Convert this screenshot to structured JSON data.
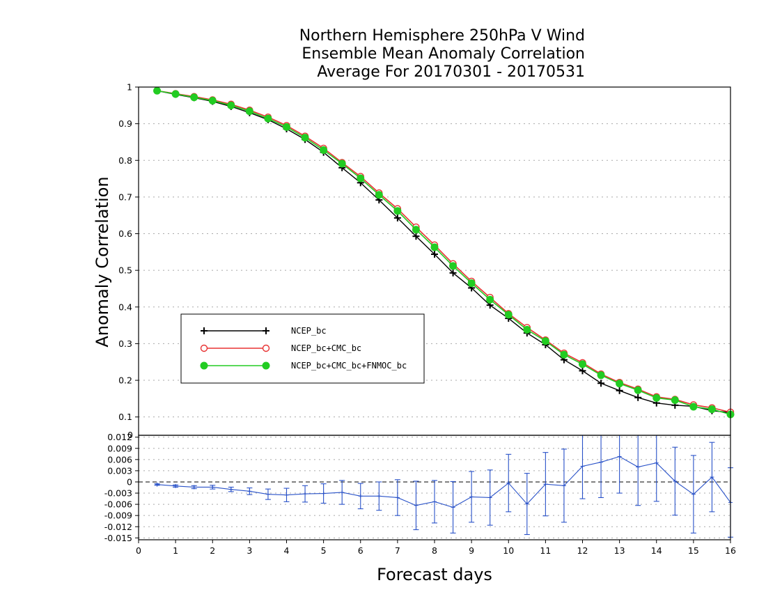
{
  "title_lines": [
    "Northern Hemisphere 250hPa V Wind",
    "Ensemble Mean Anomaly Correlation",
    "Average For 20170301 - 20170531"
  ],
  "colors": {
    "NCEP_bc": "#000000",
    "NCEP_bc+CMC_bc": "#e83232",
    "NCEP_bc+CMC_bc+FNMOC_bc": "#22cc22",
    "difference": "#2851c8",
    "grid": "#a8a8a8"
  },
  "chart_data": [
    {
      "type": "line",
      "title": "Northern Hemisphere 250hPa V Wind Ensemble Mean Anomaly Correlation Average For 20170301 - 20170531",
      "xlabel": "Forecast days",
      "ylabel": "Anomaly Correlation",
      "xlim": [
        0,
        16
      ],
      "ylim": [
        0.05,
        1.0
      ],
      "yticks": [
        0.1,
        0.2,
        0.3,
        0.4,
        0.5,
        0.6,
        0.7,
        0.8,
        0.9,
        1
      ],
      "grid": true,
      "legend_position": "lower-left",
      "x": [
        0.5,
        1,
        1.5,
        2,
        2.5,
        3,
        3.5,
        4,
        4.5,
        5,
        5.5,
        6,
        6.5,
        7,
        7.5,
        8,
        8.5,
        9,
        9.5,
        10,
        10.5,
        11,
        11.5,
        12,
        12.5,
        13,
        13.5,
        14,
        14.5,
        15,
        15.5,
        16
      ],
      "series": [
        {
          "name": "NCEP_bc",
          "marker": "plus",
          "values": [
            0.99,
            0.98,
            0.971,
            0.961,
            0.947,
            0.93,
            0.911,
            0.886,
            0.857,
            0.822,
            0.78,
            0.739,
            0.692,
            0.643,
            0.593,
            0.544,
            0.493,
            0.452,
            0.405,
            0.369,
            0.329,
            0.297,
            0.256,
            0.226,
            0.192,
            0.172,
            0.153,
            0.138,
            0.132,
            0.129,
            0.117,
            0.112
          ]
        },
        {
          "name": "NCEP_bc+CMC_bc",
          "marker": "open-circle",
          "values": [
            0.99,
            0.982,
            0.974,
            0.965,
            0.953,
            0.937,
            0.918,
            0.895,
            0.866,
            0.833,
            0.794,
            0.756,
            0.711,
            0.668,
            0.618,
            0.569,
            0.518,
            0.47,
            0.426,
            0.382,
            0.344,
            0.31,
            0.274,
            0.248,
            0.217,
            0.194,
            0.176,
            0.155,
            0.148,
            0.133,
            0.125,
            0.113
          ]
        },
        {
          "name": "NCEP_bc+CMC_bc+FNMOC_bc",
          "marker": "filled-circle",
          "values": [
            0.99,
            0.981,
            0.972,
            0.963,
            0.95,
            0.934,
            0.914,
            0.891,
            0.862,
            0.828,
            0.791,
            0.751,
            0.706,
            0.662,
            0.611,
            0.563,
            0.512,
            0.465,
            0.42,
            0.379,
            0.338,
            0.307,
            0.27,
            0.244,
            0.214,
            0.191,
            0.173,
            0.152,
            0.146,
            0.128,
            0.121,
            0.107
          ]
        }
      ]
    },
    {
      "type": "line",
      "xlabel": "Forecast days",
      "xlim": [
        0,
        16
      ],
      "xticks": [
        0,
        1,
        2,
        3,
        4,
        5,
        6,
        7,
        8,
        9,
        10,
        11,
        12,
        13,
        14,
        15,
        16
      ],
      "ylim": [
        -0.0155,
        0.0125
      ],
      "yticks": [
        0.012,
        0.009,
        0.006,
        0.003,
        0,
        -0.003,
        -0.006,
        -0.009,
        -0.012,
        -0.015
      ],
      "ytick_labels": [
        "0.012",
        "0.009",
        "0.006",
        "0.003",
        "0",
        "-0.003",
        "-0.006",
        "-0.009",
        "-0.012",
        "-0.015"
      ],
      "top_label": "0",
      "grid": true,
      "zero_line": true,
      "x": [
        0.5,
        1,
        1.5,
        2,
        2.5,
        3,
        3.5,
        4,
        4.5,
        5,
        5.5,
        6,
        6.5,
        7,
        7.5,
        8,
        8.5,
        9,
        9.5,
        10,
        10.5,
        11,
        11.5,
        12,
        12.5,
        13,
        13.5,
        14,
        14.5,
        15,
        15.5,
        16
      ],
      "series": [
        {
          "values": [
            -0.0007,
            -0.0011,
            -0.0014,
            -0.0014,
            -0.002,
            -0.0025,
            -0.0033,
            -0.0035,
            -0.0032,
            -0.0031,
            -0.0028,
            -0.0038,
            -0.0038,
            -0.0042,
            -0.0063,
            -0.0053,
            -0.0068,
            -0.004,
            -0.0042,
            -0.0003,
            -0.0059,
            -0.0006,
            -0.001,
            0.0042,
            0.0053,
            0.0068,
            0.004,
            0.0051,
            0.0002,
            -0.0033,
            0.0013,
            -0.0055
          ],
          "error": [
            0.0002,
            0.0003,
            0.0004,
            0.0005,
            0.0006,
            0.0009,
            0.0014,
            0.0018,
            0.0022,
            0.0026,
            0.0032,
            0.0034,
            0.0038,
            0.0048,
            0.0065,
            0.0057,
            0.0069,
            0.0068,
            0.0074,
            0.0077,
            0.0082,
            0.0085,
            0.0098,
            0.0087,
            0.0095,
            0.0098,
            0.0103,
            0.0103,
            0.0091,
            0.0104,
            0.0093,
            0.0093
          ]
        }
      ]
    }
  ]
}
